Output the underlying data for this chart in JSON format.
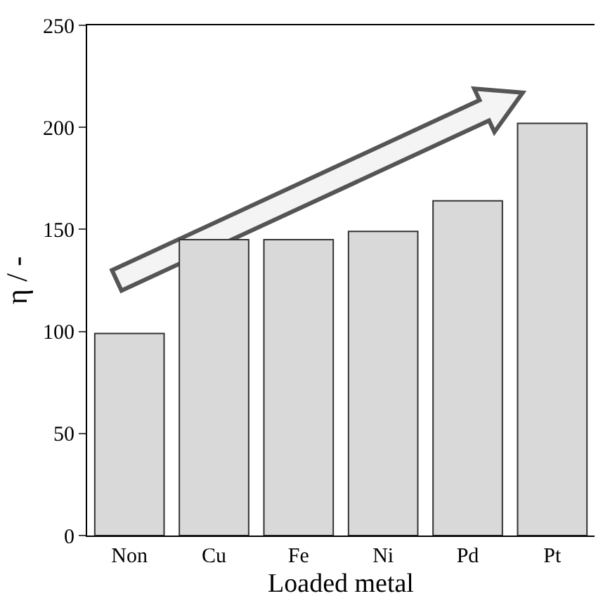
{
  "chart_data": {
    "type": "bar",
    "xlabel": "Loaded metal",
    "ylabel": "η / -",
    "categories": [
      "Non",
      "Cu",
      "Fe",
      "Ni",
      "Pd",
      "Pt"
    ],
    "values": [
      99,
      145,
      145,
      149,
      164,
      202
    ],
    "color": "#d9d9d9",
    "ylim": [
      0,
      250
    ],
    "yticks": [
      0,
      50,
      100,
      150,
      200,
      250
    ],
    "legend": false
  }
}
